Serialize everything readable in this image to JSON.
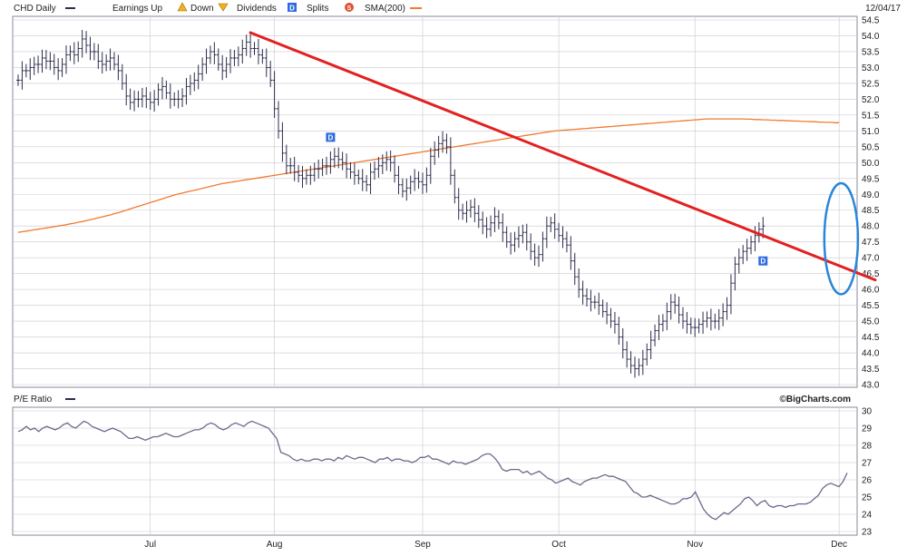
{
  "header": {
    "symbol_label": "CHD Daily",
    "earnings_label": "Earnings Up",
    "down_label": "Down",
    "dividends_label": "Dividends",
    "dividends_glyph": "D",
    "splits_label": "Splits",
    "splits_glyph": "S",
    "sma_label": "SMA(200)",
    "date_label": "12/04/17"
  },
  "lower_panel": {
    "title": "P/E Ratio",
    "credit": "©BigCharts.com"
  },
  "colors": {
    "price_bars": "#2d2d4d",
    "sma": "#f07a30",
    "trendline": "#e32020",
    "highlight": "#2a86d8",
    "pe_line": "#6a6a8a",
    "dividend_marker": "#2f6be0",
    "grid": "#c8c8d0"
  },
  "chart_data": [
    {
      "type": "ohlc",
      "title": "CHD Daily",
      "y_axis_side": "right",
      "ylim": [
        43.0,
        54.5
      ],
      "y_ticks": [
        "54.5",
        "54.0",
        "53.5",
        "53.0",
        "52.5",
        "52.0",
        "51.5",
        "51.0",
        "50.5",
        "50.0",
        "49.5",
        "49.0",
        "48.5",
        "48.0",
        "47.5",
        "47.0",
        "46.5",
        "46.0",
        "45.5",
        "45.0",
        "44.5",
        "44.0",
        "43.5",
        "43.0"
      ],
      "x_ticks": [
        {
          "label": "Jul",
          "index": 33
        },
        {
          "label": "Aug",
          "index": 64
        },
        {
          "label": "Sep",
          "index": 101
        },
        {
          "label": "Oct",
          "index": 135
        },
        {
          "label": "Nov",
          "index": 169
        },
        {
          "label": "Dec",
          "index": 205
        }
      ],
      "n_periods": 208,
      "series": [
        {
          "name": "CHD Daily",
          "kind": "ohlc",
          "close": [
            52.6,
            52.9,
            52.9,
            53.0,
            53.1,
            53.1,
            53.3,
            53.2,
            53.2,
            53.0,
            52.9,
            53.1,
            53.4,
            53.5,
            53.4,
            53.6,
            53.9,
            53.7,
            53.5,
            53.5,
            53.2,
            53.1,
            53.2,
            53.3,
            53.1,
            52.9,
            52.5,
            52.1,
            51.9,
            52.0,
            52.0,
            52.1,
            52.0,
            51.9,
            52.0,
            52.3,
            52.4,
            52.2,
            52.0,
            52.0,
            52.0,
            52.1,
            52.4,
            52.5,
            52.6,
            52.8,
            53.1,
            53.3,
            53.5,
            53.4,
            53.1,
            52.9,
            53.1,
            53.3,
            53.3,
            53.4,
            53.6,
            53.8,
            53.6,
            53.6,
            53.4,
            53.3,
            53.0,
            52.6,
            51.7,
            51.0,
            50.3,
            49.9,
            49.9,
            49.7,
            49.6,
            49.5,
            49.6,
            49.6,
            49.8,
            49.8,
            49.9,
            49.9,
            50.1,
            50.2,
            50.1,
            50.0,
            49.8,
            49.7,
            49.6,
            49.5,
            49.4,
            49.3,
            49.7,
            49.8,
            49.9,
            50.0,
            50.1,
            50.0,
            49.6,
            49.3,
            49.1,
            49.2,
            49.4,
            49.5,
            49.4,
            49.3,
            49.6,
            50.2,
            50.4,
            50.6,
            50.7,
            50.5,
            49.6,
            48.9,
            48.5,
            48.4,
            48.5,
            48.6,
            48.4,
            48.2,
            48.0,
            47.9,
            48.1,
            48.3,
            48.1,
            47.8,
            47.5,
            47.4,
            47.6,
            47.7,
            47.8,
            47.5,
            47.2,
            47.0,
            47.1,
            47.6,
            48.0,
            48.1,
            47.9,
            47.7,
            47.6,
            47.4,
            46.9,
            46.4,
            46.0,
            45.8,
            45.7,
            45.6,
            45.6,
            45.5,
            45.3,
            45.2,
            45.0,
            44.9,
            44.5,
            44.1,
            43.8,
            43.6,
            43.5,
            43.6,
            43.8,
            44.1,
            44.4,
            44.7,
            44.9,
            45.0,
            45.3,
            45.6,
            45.5,
            45.2,
            45.0,
            44.9,
            44.8,
            44.8,
            44.9,
            45.0,
            45.1,
            45.0,
            45.0,
            45.1,
            45.3,
            45.5,
            46.2,
            46.8,
            47.0,
            47.2,
            47.3,
            47.5,
            47.7,
            47.9,
            48.0
          ],
          "high_low_spread": 0.6
        },
        {
          "name": "SMA(200)",
          "kind": "line",
          "values": [
            47.8,
            47.82,
            47.84,
            47.86,
            47.88,
            47.9,
            47.92,
            47.94,
            47.96,
            47.98,
            48.0,
            48.02,
            48.04,
            48.07,
            48.09,
            48.12,
            48.14,
            48.17,
            48.2,
            48.23,
            48.26,
            48.29,
            48.32,
            48.35,
            48.39,
            48.42,
            48.46,
            48.5,
            48.54,
            48.58,
            48.62,
            48.66,
            48.7,
            48.74,
            48.78,
            48.82,
            48.86,
            48.9,
            48.94,
            48.98,
            49.01,
            49.04,
            49.07,
            49.1,
            49.13,
            49.16,
            49.19,
            49.22,
            49.25,
            49.28,
            49.31,
            49.34,
            49.36,
            49.38,
            49.4,
            49.42,
            49.44,
            49.46,
            49.48,
            49.5,
            49.52,
            49.54,
            49.56,
            49.58,
            49.6,
            49.62,
            49.64,
            49.66,
            49.68,
            49.7,
            49.72,
            49.74,
            49.76,
            49.78,
            49.8,
            49.82,
            49.84,
            49.86,
            49.88,
            49.9,
            49.92,
            49.94,
            49.96,
            49.98,
            50.0,
            50.02,
            50.04,
            50.06,
            50.08,
            50.1,
            50.12,
            50.14,
            50.16,
            50.18,
            50.2,
            50.22,
            50.24,
            50.26,
            50.28,
            50.3,
            50.32,
            50.34,
            50.36,
            50.38,
            50.4,
            50.42,
            50.44,
            50.46,
            50.48,
            50.5,
            50.52,
            50.54,
            50.56,
            50.58,
            50.6,
            50.62,
            50.64,
            50.66,
            50.68,
            50.7,
            50.72,
            50.74,
            50.76,
            50.78,
            50.8,
            50.82,
            50.84,
            50.86,
            50.88,
            50.9,
            50.92,
            50.94,
            50.96,
            50.98,
            51.0,
            51.01,
            51.02,
            51.03,
            51.04,
            51.05,
            51.06,
            51.07,
            51.08,
            51.09,
            51.1,
            51.11,
            51.12,
            51.13,
            51.14,
            51.15,
            51.16,
            51.17,
            51.18,
            51.19,
            51.2,
            51.21,
            51.22,
            51.23,
            51.24,
            51.25,
            51.26,
            51.27,
            51.28,
            51.29,
            51.3,
            51.31,
            51.32,
            51.33,
            51.34,
            51.35,
            51.36,
            51.37,
            51.38,
            51.38,
            51.38,
            51.38,
            51.38,
            51.38,
            51.38,
            51.38,
            51.38,
            51.38,
            51.37,
            51.37,
            51.36,
            51.36,
            51.35,
            51.35,
            51.34,
            51.34,
            51.33,
            51.33,
            51.32,
            51.32,
            51.31,
            51.31,
            51.3,
            51.3,
            51.29,
            51.29,
            51.28,
            51.28,
            51.27,
            51.27,
            51.26,
            51.26
          ]
        },
        {
          "name": "Trendline",
          "kind": "annotation_line",
          "from": {
            "index": 58,
            "value": 54.1
          },
          "to": {
            "index": 214,
            "value": 46.3
          }
        }
      ],
      "annotations": [
        {
          "type": "dividend",
          "glyph": "D",
          "index": 78,
          "value": 50.8
        },
        {
          "type": "dividend",
          "glyph": "D",
          "index": 186,
          "value": 46.9
        },
        {
          "type": "ellipse_highlight",
          "index_center": 205.5,
          "value_center": 47.6,
          "index_radius": 4.2,
          "value_radius": 1.75
        }
      ]
    },
    {
      "type": "line",
      "title": "P/E Ratio",
      "y_axis_side": "right",
      "ylim": [
        23,
        30
      ],
      "y_ticks": [
        "30",
        "29",
        "28",
        "27",
        "26",
        "25",
        "24",
        "23"
      ],
      "series": [
        {
          "name": "P/E Ratio",
          "values": [
            28.8,
            28.9,
            29.1,
            28.9,
            29.0,
            28.8,
            29.0,
            29.1,
            29.0,
            28.9,
            29.0,
            29.2,
            29.3,
            29.1,
            29.0,
            29.2,
            29.4,
            29.3,
            29.1,
            29.0,
            28.9,
            28.8,
            28.9,
            29.0,
            28.9,
            28.8,
            28.6,
            28.4,
            28.4,
            28.5,
            28.4,
            28.3,
            28.4,
            28.5,
            28.5,
            28.6,
            28.7,
            28.6,
            28.5,
            28.5,
            28.6,
            28.7,
            28.8,
            28.9,
            28.9,
            29.0,
            29.2,
            29.3,
            29.2,
            29.0,
            28.9,
            29.0,
            29.2,
            29.3,
            29.2,
            29.1,
            29.3,
            29.4,
            29.3,
            29.2,
            29.1,
            29.0,
            28.7,
            28.4,
            27.6,
            27.5,
            27.4,
            27.2,
            27.1,
            27.2,
            27.1,
            27.1,
            27.2,
            27.2,
            27.1,
            27.2,
            27.2,
            27.1,
            27.3,
            27.2,
            27.4,
            27.3,
            27.2,
            27.3,
            27.3,
            27.2,
            27.1,
            27.0,
            27.2,
            27.2,
            27.3,
            27.1,
            27.2,
            27.2,
            27.1,
            27.1,
            27.0,
            27.1,
            27.3,
            27.3,
            27.4,
            27.2,
            27.2,
            27.1,
            27.0,
            26.9,
            27.1,
            27.0,
            27.0,
            26.9,
            27.0,
            27.1,
            27.2,
            27.4,
            27.5,
            27.5,
            27.3,
            27.0,
            26.6,
            26.5,
            26.6,
            26.6,
            26.6,
            26.4,
            26.5,
            26.3,
            26.4,
            26.5,
            26.3,
            26.1,
            26.0,
            25.8,
            25.9,
            26.0,
            26.1,
            25.9,
            25.8,
            25.7,
            25.9,
            26.0,
            26.1,
            26.1,
            26.2,
            26.3,
            26.2,
            26.2,
            26.1,
            26.0,
            25.9,
            25.6,
            25.3,
            25.2,
            25.0,
            25.0,
            25.1,
            25.0,
            24.9,
            24.8,
            24.7,
            24.6,
            24.6,
            24.7,
            24.9,
            24.9,
            25.0,
            25.3,
            24.8,
            24.3,
            24.0,
            23.8,
            23.7,
            23.9,
            24.1,
            24.0,
            24.2,
            24.4,
            24.6,
            24.9,
            25.0,
            24.8,
            24.5,
            24.7,
            24.8,
            24.5,
            24.4,
            24.5,
            24.5,
            24.4,
            24.5,
            24.5,
            24.6,
            24.6,
            24.6,
            24.7,
            24.9,
            25.1,
            25.5,
            25.7,
            25.8,
            25.7,
            25.6,
            25.9,
            26.4
          ]
        }
      ]
    }
  ]
}
